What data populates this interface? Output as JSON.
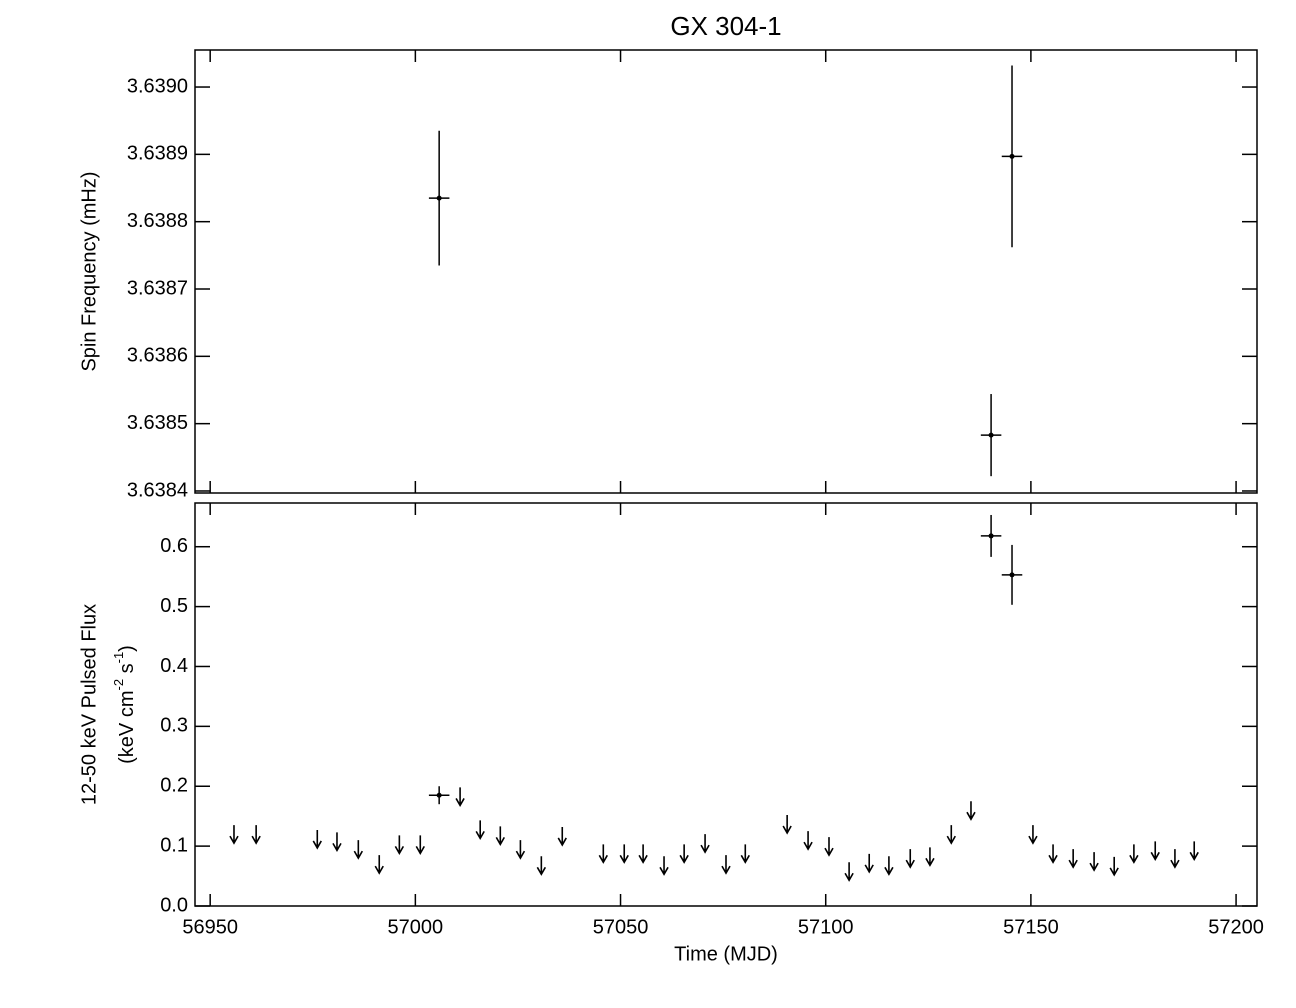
{
  "chart_data": [
    {
      "type": "errorbar",
      "title": "GX 304-1",
      "y_label": "Spin Frequency (mHz)",
      "xlim": [
        56946.3,
        57205.1
      ],
      "xticks": [
        56950,
        57000,
        57050,
        57100,
        57150,
        57200
      ],
      "ylim": [
        3.638397,
        3.639055
      ],
      "yticks": [
        3.6384,
        3.6385,
        3.6386,
        3.6387,
        3.6388,
        3.6389,
        {
          "value": 3.639,
          "label": "3.6390"
        }
      ],
      "series": [
        {
          "color": "#000000",
          "x": [
            57005.8,
            57140.3,
            57145.4
          ],
          "values": [
            3.638835,
            3.638483,
            3.638897
          ],
          "xerr": [
            2.5,
            2.5,
            2.5
          ],
          "yerr": [
            0.0001,
            6.1e-05,
            0.000135
          ]
        }
      ]
    },
    {
      "type": "errorbar",
      "x_label": "Time (MJD)",
      "y_label": "12-50 keV Pulsed Flux",
      "y_label_units": [
        "(keV cm",
        "-2",
        " s",
        "-1",
        ")"
      ],
      "xlim": [
        56946.3,
        57205.1
      ],
      "xticks": [
        56950,
        57000,
        57050,
        57100,
        57150,
        57200
      ],
      "ylim": [
        0,
        0.673
      ],
      "yticks": [
        {
          "value": 0,
          "label": "0.0"
        },
        0.1,
        0.2,
        0.3,
        0.4,
        0.5,
        0.6
      ],
      "series": [
        {
          "color": "#000000",
          "x": [
            57005.8,
            57140.3,
            57145.4
          ],
          "values": [
            0.185,
            0.618,
            0.553
          ],
          "xerr": [
            2.5,
            2.5,
            2.5
          ],
          "yerr": [
            0.015,
            0.035,
            0.05
          ]
        },
        {
          "color": "#000000",
          "upper_limit": true,
          "x": [
            56955.8,
            56961.2,
            56976.1,
            56980.9,
            56986.1,
            56991.2,
            56996.1,
            57001.2,
            57010.9,
            57015.8,
            57020.7,
            57025.6,
            57030.7,
            57035.8,
            57045.8,
            57050.9,
            57055.5,
            57060.6,
            57065.5,
            57070.6,
            57075.7,
            57080.4,
            57090.6,
            57095.7,
            57100.8,
            57105.7,
            57110.6,
            57115.4,
            57120.6,
            57125.4,
            57130.6,
            57135.4,
            57150.5,
            57155.4,
            57160.3,
            57165.4,
            57170.3,
            57175.1,
            57180.3,
            57185.1,
            57189.8
          ],
          "values": [
            0.135,
            0.135,
            0.127,
            0.123,
            0.11,
            0.085,
            0.118,
            0.118,
            0.198,
            0.143,
            0.133,
            0.11,
            0.083,
            0.132,
            0.103,
            0.103,
            0.103,
            0.083,
            0.103,
            0.12,
            0.085,
            0.103,
            0.152,
            0.125,
            0.115,
            0.073,
            0.087,
            0.083,
            0.095,
            0.098,
            0.135,
            0.175,
            0.135,
            0.103,
            0.095,
            0.09,
            0.082,
            0.103,
            0.108,
            0.095,
            0.108
          ]
        }
      ]
    }
  ]
}
